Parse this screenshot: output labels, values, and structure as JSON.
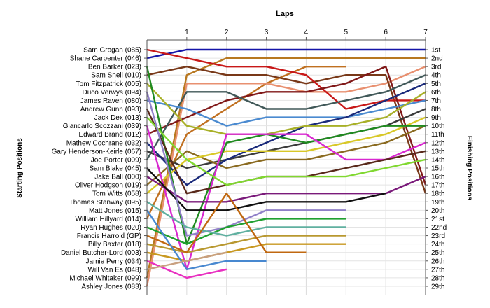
{
  "chart_data": {
    "type": "line",
    "title": "",
    "top_axis_label": "Laps",
    "xlabel": "Laps",
    "left_axis_label": "Starting Positions",
    "right_axis_label": "Finishing Positions",
    "x": [
      0,
      1,
      2,
      3,
      4,
      5,
      6,
      7
    ],
    "x_tick_labels": [
      "1",
      "2",
      "3",
      "4",
      "5",
      "6",
      "7"
    ],
    "ylim": [
      1,
      29
    ],
    "y_reversed": true,
    "grid": true,
    "legend": "none",
    "starting_grid": [
      "Sam Grogan (085)",
      "Shane Carpenter (046)",
      "Ben Barker (023)",
      "Sam Snell (010)",
      "Tom Fitzpatrick (005)",
      "Duco Verwys (094)",
      "James Raven (080)",
      "Andrew Gunn (093)",
      "Jack Dex (013)",
      "Giancarlo Scozzani (039)",
      "Edward Brand (012)",
      "Mathew Cochrane (032)",
      "Gary Henderson-Keirle (067)",
      "Joe Porter (009)",
      "Sam Blake (045)",
      "Jake Ball (000)",
      "Oliver Hodgson (019)",
      "Tom Witts (058)",
      "Thomas Stanway (095)",
      "Matt Jones (015)",
      "William Hillyard (014)",
      "Ryan Hughes (020)",
      "Francis Harrold (GP)",
      "Billy Baxter (018)",
      "Daniel Butcher-Lord (003)",
      "Jamie Perry (034)",
      "Will Van Es (048)",
      "Michael Whitaker (099)",
      "Ashley Jones (083)"
    ],
    "finishing_labels": [
      "1st",
      "2nd",
      "3rd",
      "4th",
      "5th",
      "6th",
      "7th",
      "8th",
      "9th",
      "10th",
      "11th",
      "12th",
      "13th",
      "14th",
      "15th",
      "16th",
      "17th",
      "18th",
      "19th",
      "20th",
      "21st",
      "22nd",
      "23rd",
      "24th",
      "25th",
      "26th",
      "27th",
      "28th",
      "29th"
    ],
    "series": [
      {
        "color": "#1414a8",
        "values": [
          2,
          1,
          1,
          1,
          1,
          1,
          1,
          1
        ]
      },
      {
        "color": "#c07020",
        "values": [
          21,
          11,
          8,
          5,
          3,
          3,
          null,
          null
        ]
      },
      {
        "color": "#b87820",
        "values": [
          28,
          4,
          2,
          2,
          2,
          2,
          2,
          2
        ]
      },
      {
        "color": "#e89070",
        "values": [
          29,
          5,
          5,
          5,
          6,
          6,
          5,
          3
        ]
      },
      {
        "color": "#783818",
        "values": [
          4,
          3,
          4,
          4,
          5,
          4,
          4,
          18
        ]
      },
      {
        "color": "#c81818",
        "values": [
          1,
          2,
          3,
          3,
          4,
          8,
          7,
          7
        ]
      },
      {
        "color": "#801818",
        "values": [
          11,
          9,
          7,
          6,
          6,
          5,
          3,
          17
        ]
      },
      {
        "color": "#405858",
        "values": [
          14,
          6,
          6,
          8,
          8,
          7,
          6,
          4
        ]
      },
      {
        "color": "#3a3a3a",
        "values": [
          13,
          15,
          14,
          13,
          12,
          11,
          10,
          8
        ]
      },
      {
        "color": "#4a8ad0",
        "values": [
          7,
          8,
          10,
          9,
          9,
          9,
          8,
          7
        ]
      },
      {
        "color": "#8a6a20",
        "values": [
          17,
          13,
          15,
          14,
          14,
          13,
          12,
          10
        ]
      },
      {
        "color": "#1a2a7a",
        "values": [
          12,
          17,
          14,
          12,
          10,
          9,
          7,
          5
        ]
      },
      {
        "color": "#d8c828",
        "values": [
          18,
          14,
          13,
          13,
          13,
          12,
          11,
          9
        ]
      },
      {
        "color": "#a8b028",
        "values": [
          5,
          10,
          11,
          11,
          10,
          10,
          9,
          6
        ]
      },
      {
        "color": "#208a20",
        "values": [
          3,
          24,
          12,
          11,
          12,
          11,
          10,
          10
        ]
      },
      {
        "color": "#d828d0",
        "values": [
          10,
          27,
          11,
          11,
          11,
          14,
          14,
          12
        ]
      },
      {
        "color": "#58281a",
        "values": [
          8,
          18,
          17,
          16,
          16,
          15,
          14,
          13
        ]
      },
      {
        "color": "#7a1a7a",
        "values": [
          16,
          19,
          19,
          18,
          18,
          18,
          18,
          16
        ]
      },
      {
        "color": "#80d830",
        "values": [
          9,
          14,
          17,
          16,
          16,
          16,
          15,
          14
        ]
      },
      {
        "color": "#101010",
        "values": [
          15,
          20,
          20,
          19,
          19,
          19,
          18,
          null
        ]
      },
      {
        "color": "#9080c8",
        "values": [
          6,
          23,
          22,
          20,
          20,
          20,
          null,
          null
        ]
      },
      {
        "color": "#20a030",
        "values": [
          22,
          24,
          22,
          21,
          21,
          21,
          null,
          null
        ]
      },
      {
        "color": "#60b0a0",
        "values": [
          19,
          22,
          23,
          22,
          22,
          22,
          null,
          null
        ]
      },
      {
        "color": "#b89830",
        "values": [
          24,
          25,
          24,
          23,
          23,
          23,
          null,
          null
        ]
      },
      {
        "color": "#c89820",
        "values": [
          25,
          26,
          25,
          24,
          24,
          24,
          null,
          null
        ]
      },
      {
        "color": "#c06810",
        "values": [
          23,
          25,
          18,
          25,
          25,
          null,
          null,
          null
        ]
      },
      {
        "color": "#4888d0",
        "values": [
          20,
          27,
          26,
          26,
          null,
          null,
          null,
          null
        ]
      },
      {
        "color": "#e830c0",
        "values": [
          26,
          28,
          27,
          null,
          null,
          null,
          null,
          null
        ]
      },
      {
        "color": "#c8a080",
        "values": [
          27,
          26,
          25,
          null,
          null,
          null,
          null,
          null
        ]
      }
    ]
  }
}
